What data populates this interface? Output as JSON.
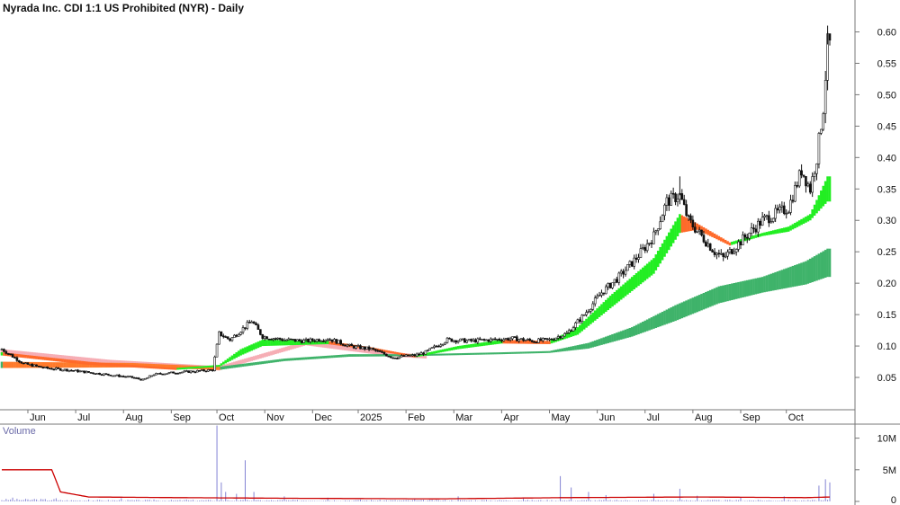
{
  "chart_data": {
    "type": "candlestick",
    "title": "Nyrada Inc. CDI 1:1 US Prohibited (NYR) - Daily",
    "price_axis": {
      "ylim": [
        0.0,
        0.625
      ],
      "ticks": [
        0.05,
        0.1,
        0.15,
        0.2,
        0.25,
        0.3,
        0.35,
        0.4,
        0.45,
        0.5,
        0.55,
        0.6
      ],
      "tick_labels": [
        "0.05",
        "0.10",
        "0.15",
        "0.20",
        "0.25",
        "0.30",
        "0.35",
        "0.40",
        "0.45",
        "0.50",
        "0.55",
        "0.60"
      ],
      "position": "right"
    },
    "x_axis": {
      "labels": [
        "Jun",
        "Jul",
        "Aug",
        "Sep",
        "Oct",
        "Nov",
        "Dec",
        "2025",
        "Feb",
        "Mar",
        "Apr",
        "May",
        "Jun",
        "Jul",
        "Aug",
        "Sep",
        "Oct"
      ],
      "label_index": [
        12,
        34,
        56,
        78,
        99,
        121,
        143,
        164,
        186,
        208,
        230,
        252,
        274,
        296,
        318,
        340,
        361
      ],
      "total_bars": 382
    },
    "price_close": [
      [
        0,
        0.095
      ],
      [
        10,
        0.072
      ],
      [
        20,
        0.065
      ],
      [
        30,
        0.062
      ],
      [
        40,
        0.058
      ],
      [
        50,
        0.054
      ],
      [
        60,
        0.05
      ],
      [
        65,
        0.046
      ],
      [
        70,
        0.055
      ],
      [
        80,
        0.058
      ],
      [
        90,
        0.06
      ],
      [
        97,
        0.062
      ],
      [
        100,
        0.12
      ],
      [
        105,
        0.11
      ],
      [
        110,
        0.125
      ],
      [
        115,
        0.14
      ],
      [
        120,
        0.115
      ],
      [
        130,
        0.11
      ],
      [
        140,
        0.108
      ],
      [
        150,
        0.112
      ],
      [
        160,
        0.1
      ],
      [
        170,
        0.095
      ],
      [
        180,
        0.082
      ],
      [
        190,
        0.085
      ],
      [
        195,
        0.09
      ],
      [
        205,
        0.11
      ],
      [
        215,
        0.108
      ],
      [
        225,
        0.11
      ],
      [
        235,
        0.112
      ],
      [
        245,
        0.108
      ],
      [
        252,
        0.11
      ],
      [
        260,
        0.12
      ],
      [
        268,
        0.15
      ],
      [
        276,
        0.185
      ],
      [
        284,
        0.21
      ],
      [
        292,
        0.24
      ],
      [
        300,
        0.275
      ],
      [
        306,
        0.33
      ],
      [
        312,
        0.34
      ],
      [
        316,
        0.3
      ],
      [
        322,
        0.275
      ],
      [
        328,
        0.25
      ],
      [
        332,
        0.24
      ],
      [
        338,
        0.26
      ],
      [
        344,
        0.28
      ],
      [
        350,
        0.3
      ],
      [
        356,
        0.31
      ],
      [
        362,
        0.32
      ],
      [
        368,
        0.38
      ],
      [
        372,
        0.35
      ],
      [
        375,
        0.4
      ],
      [
        378,
        0.48
      ],
      [
        380,
        0.58
      ]
    ],
    "price_high_annotations": [
      [
        312,
        0.37
      ],
      [
        380,
        0.6
      ]
    ],
    "ema_fast_band": [
      [
        0,
        0.09,
        0.085
      ],
      [
        40,
        0.075,
        0.07
      ],
      [
        80,
        0.065,
        0.062
      ],
      [
        100,
        0.07,
        0.067
      ],
      [
        110,
        0.095,
        0.085
      ],
      [
        120,
        0.11,
        0.1
      ],
      [
        150,
        0.108,
        0.103
      ],
      [
        170,
        0.098,
        0.094
      ],
      [
        190,
        0.085,
        0.082
      ],
      [
        210,
        0.1,
        0.095
      ],
      [
        230,
        0.11,
        0.104
      ],
      [
        252,
        0.108,
        0.103
      ],
      [
        265,
        0.13,
        0.118
      ],
      [
        280,
        0.18,
        0.16
      ],
      [
        300,
        0.24,
        0.215
      ],
      [
        312,
        0.31,
        0.28
      ],
      [
        320,
        0.295,
        0.285
      ],
      [
        335,
        0.265,
        0.26
      ],
      [
        350,
        0.28,
        0.275
      ],
      [
        362,
        0.29,
        0.282
      ],
      [
        372,
        0.31,
        0.3
      ],
      [
        380,
        0.37,
        0.33
      ]
    ],
    "ema_slow_band": [
      [
        0,
        0.075,
        0.065
      ],
      [
        60,
        0.073,
        0.066
      ],
      [
        100,
        0.067,
        0.062
      ],
      [
        130,
        0.08,
        0.076
      ],
      [
        160,
        0.087,
        0.083
      ],
      [
        190,
        0.087,
        0.084
      ],
      [
        230,
        0.09,
        0.087
      ],
      [
        252,
        0.092,
        0.089
      ],
      [
        270,
        0.105,
        0.096
      ],
      [
        290,
        0.13,
        0.115
      ],
      [
        310,
        0.165,
        0.14
      ],
      [
        330,
        0.195,
        0.168
      ],
      [
        350,
        0.21,
        0.185
      ],
      [
        370,
        0.235,
        0.198
      ],
      [
        380,
        0.255,
        0.21
      ]
    ],
    "volume_axis": {
      "ylim": [
        0,
        12500000
      ],
      "ticks": [
        0,
        5000000,
        10000000
      ],
      "tick_labels": [
        "0",
        "5M",
        "10M"
      ]
    },
    "volume_label": "Volume",
    "volume_spikes": [
      [
        5,
        600000
      ],
      [
        15,
        400000
      ],
      [
        25,
        500000
      ],
      [
        40,
        300000
      ],
      [
        55,
        500000
      ],
      [
        70,
        300000
      ],
      [
        85,
        300000
      ],
      [
        99,
        12000000
      ],
      [
        101,
        3000000
      ],
      [
        103,
        1500000
      ],
      [
        108,
        1200000
      ],
      [
        112,
        6500000
      ],
      [
        116,
        1500000
      ],
      [
        130,
        800000
      ],
      [
        150,
        600000
      ],
      [
        165,
        300000
      ],
      [
        190,
        500000
      ],
      [
        210,
        800000
      ],
      [
        240,
        600000
      ],
      [
        257,
        4000000
      ],
      [
        262,
        2200000
      ],
      [
        270,
        1500000
      ],
      [
        278,
        1000000
      ],
      [
        300,
        1200000
      ],
      [
        312,
        2000000
      ],
      [
        320,
        900000
      ],
      [
        340,
        700000
      ],
      [
        360,
        800000
      ],
      [
        376,
        2500000
      ],
      [
        379,
        3500000
      ],
      [
        381,
        3000000
      ]
    ],
    "volume_avg_line": [
      [
        0,
        5000000
      ],
      [
        23,
        5000000
      ],
      [
        27,
        1500000
      ],
      [
        40,
        700000
      ],
      [
        80,
        600000
      ],
      [
        130,
        500000
      ],
      [
        200,
        400000
      ],
      [
        260,
        600000
      ],
      [
        320,
        700000
      ],
      [
        370,
        600000
      ],
      [
        382,
        700000
      ]
    ],
    "colors": {
      "candle": "#111111",
      "ema_fast_up": "#22ee22",
      "ema_fast_down": "#ff6a2a",
      "ema_slow_up": "#3fb36a",
      "ema_slow_down": "#ff7a2a",
      "pink_band": "#f4a0a8",
      "volume_bar": "#8484d4",
      "volume_line": "#cc0000",
      "grid": "#777777"
    }
  }
}
